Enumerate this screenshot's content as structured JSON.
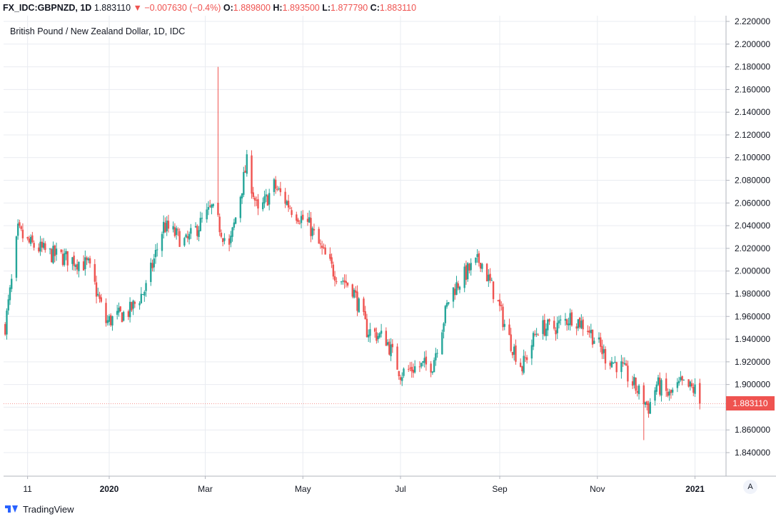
{
  "header": {
    "symbol": "FX_IDC:GBPNZD, 1D",
    "last": "1.883110",
    "change": "−0.007630 (−0.4%)",
    "o_label": "O:",
    "o": "1.889800",
    "h_label": "H:",
    "h": "1.893500",
    "l_label": "L:",
    "l": "1.877790",
    "c_label": "C:",
    "c": "1.883110"
  },
  "colors": {
    "up": "#26a69a",
    "down": "#ef5350",
    "grid": "#e9ecf1",
    "axis_text": "#131722"
  },
  "price_tag": "1.883110",
  "scale_button": "A",
  "footer": {
    "brand": "TradingView"
  },
  "chart_data": {
    "type": "candlestick",
    "title": "British Pound / New Zealand Dollar, 1D, IDC",
    "ylim": [
      1.82,
      2.22
    ],
    "y_ticks": [
      "1.840000",
      "1.860000",
      "1.880000",
      "1.900000",
      "1.920000",
      "1.940000",
      "1.960000",
      "1.980000",
      "2.000000",
      "2.020000",
      "2.040000",
      "2.060000",
      "2.080000",
      "2.100000",
      "2.120000",
      "2.140000",
      "2.160000",
      "2.180000",
      "2.200000",
      "2.220000"
    ],
    "x_ticks": [
      "11",
      "2020",
      "Mar",
      "May",
      "Jul",
      "Sep",
      "Nov",
      "2021"
    ],
    "x_range": [
      "2019-10-27",
      "2021-01-07"
    ],
    "x_tick_dates": [
      "2019-11-11",
      "2020-01-01",
      "2020-03-01",
      "2020-05-01",
      "2020-07-01",
      "2020-09-01",
      "2020-11-01",
      "2021-01-01"
    ],
    "anchors": [
      [
        "2019-10-28",
        1.952
      ],
      [
        "2019-11-01",
        1.99
      ],
      [
        "2019-11-05",
        2.035
      ],
      [
        "2019-11-11",
        2.025
      ],
      [
        "2019-11-25",
        2.015
      ],
      [
        "2019-12-09",
        2.01
      ],
      [
        "2019-12-19",
        2.005
      ],
      [
        "2019-12-30",
        1.955
      ],
      [
        "2020-01-14",
        1.965
      ],
      [
        "2020-01-24",
        1.985
      ],
      [
        "2020-02-04",
        2.04
      ],
      [
        "2020-02-18",
        2.025
      ],
      [
        "2020-03-05",
        2.055
      ],
      [
        "2020-03-16",
        2.02
      ],
      [
        "2020-03-27",
        2.095
      ],
      [
        "2020-04-03",
        2.05
      ],
      [
        "2020-04-13",
        2.075
      ],
      [
        "2020-04-24",
        2.055
      ],
      [
        "2020-05-05",
        2.04
      ],
      [
        "2020-05-12",
        2.02
      ],
      [
        "2020-05-20",
        2.0
      ],
      [
        "2020-06-01",
        1.985
      ],
      [
        "2020-06-10",
        1.948
      ],
      [
        "2020-06-22",
        1.94
      ],
      [
        "2020-07-01",
        1.91
      ],
      [
        "2020-07-10",
        1.915
      ],
      [
        "2020-07-21",
        1.918
      ],
      [
        "2020-08-01",
        1.98
      ],
      [
        "2020-08-12",
        2.0
      ],
      [
        "2020-08-20",
        2.01
      ],
      [
        "2020-08-30",
        1.975
      ],
      [
        "2020-09-07",
        1.94
      ],
      [
        "2020-09-15",
        1.915
      ],
      [
        "2020-09-25",
        1.95
      ],
      [
        "2020-10-05",
        1.95
      ],
      [
        "2020-10-16",
        1.96
      ],
      [
        "2020-10-26",
        1.95
      ],
      [
        "2020-11-06",
        1.925
      ],
      [
        "2020-11-16",
        1.915
      ],
      [
        "2020-11-26",
        1.895
      ],
      [
        "2020-12-03",
        1.88
      ],
      [
        "2020-12-08",
        1.9
      ],
      [
        "2020-12-16",
        1.89
      ],
      [
        "2020-12-23",
        1.9
      ],
      [
        "2021-01-01",
        1.895
      ],
      [
        "2021-01-04",
        1.883
      ]
    ],
    "spikes": [
      {
        "date": "2020-03-09",
        "high": 2.18
      },
      {
        "date": "2020-11-30",
        "low": 1.851
      }
    ],
    "last_close": 1.88311
  }
}
